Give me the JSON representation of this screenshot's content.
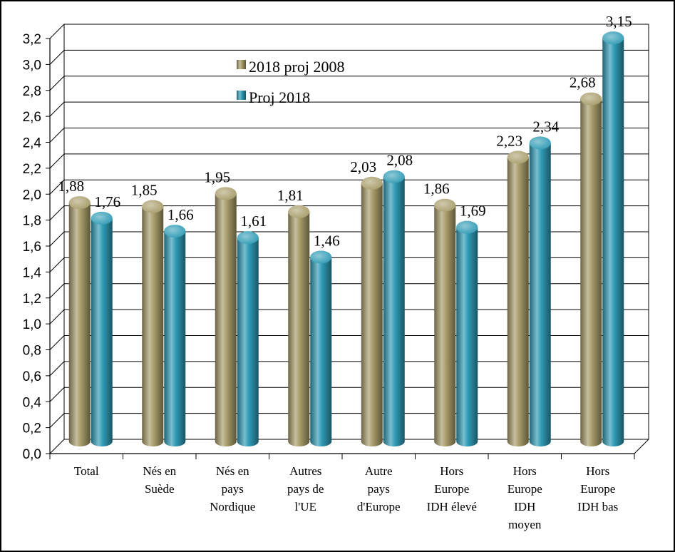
{
  "chart_data": {
    "type": "bar",
    "categories": [
      [
        "Total"
      ],
      [
        "Nés en",
        "Suède"
      ],
      [
        "Nés en",
        "pays",
        "Nordique"
      ],
      [
        "Autres",
        "pays de",
        "l'UE"
      ],
      [
        "Autre",
        "pays",
        "d'Europe"
      ],
      [
        "Hors",
        "Europe",
        "IDH élevé"
      ],
      [
        "Hors",
        "Europe",
        "IDH",
        "moyen"
      ],
      [
        "Hors",
        "Europe",
        "IDH bas"
      ]
    ],
    "series": [
      {
        "name": "2018 proj 2008",
        "color": "#a89c6a",
        "values": [
          1.88,
          1.85,
          1.95,
          1.81,
          2.03,
          1.86,
          2.23,
          2.68
        ],
        "labels": [
          "1,88",
          "1,85",
          "1,95",
          "1,81",
          "2,03",
          "1,86",
          "2,23",
          "2,68"
        ]
      },
      {
        "name": "Proj 2018",
        "color": "#2f9bb5",
        "values": [
          1.76,
          1.66,
          1.61,
          1.46,
          2.08,
          1.69,
          2.34,
          3.15
        ],
        "labels": [
          "1,76",
          "1,66",
          "1,61",
          "1,46",
          "2,08",
          "1,69",
          "2,34",
          "3,15"
        ]
      }
    ],
    "y_ticks": [
      "0,0",
      "0,2",
      "0,4",
      "0,6",
      "0,8",
      "1,0",
      "1,2",
      "1,4",
      "1,6",
      "1,8",
      "2,0",
      "2,2",
      "2,4",
      "2,6",
      "2,8",
      "3,0",
      "3,2"
    ],
    "ylim": [
      0,
      3.2
    ],
    "title": "",
    "xlabel": "",
    "ylabel": "",
    "grid": true,
    "legend_position": "top-center",
    "bar_shape": "3d-cylinder"
  }
}
